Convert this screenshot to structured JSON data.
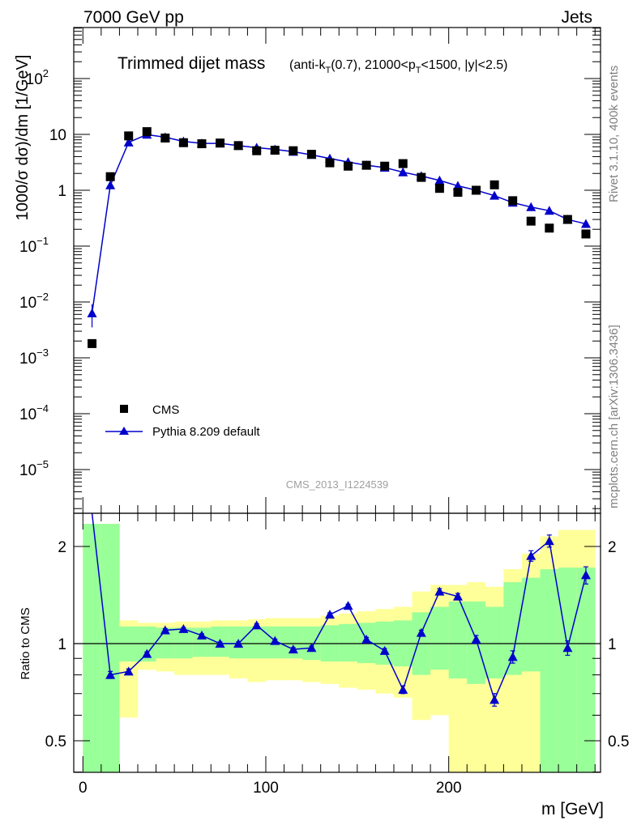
{
  "header": {
    "energy_label": "7000 GeV pp",
    "process_label": "Jets",
    "side_top": "Rivet 3.1.10,  400k events",
    "side_bottom": "mcplots.cern.ch [arXiv:1306.3436]",
    "analysis_id": "CMS_2013_I1224539"
  },
  "chart_data": [
    {
      "type": "scatter",
      "title": "Trimmed dijet mass",
      "subtitle": "(anti-k_T(0.7), 21000<p_T<1500, |y|<2.5)",
      "xlabel": "m [GeV]",
      "ylabel": "1000/σ dσ)/dm [1/GeV]",
      "yscale": "log",
      "xlim": [
        -5,
        283
      ],
      "ylim": [
        4e-06,
        1000
      ],
      "x_ticks": [
        0,
        100,
        200
      ],
      "y_ticks": [
        "10^-5",
        "10^-4",
        "10^-3",
        "10^-2",
        "10^-1",
        "1",
        "10",
        "10^2"
      ],
      "legend_position": "bottom-left",
      "series": [
        {
          "name": "CMS",
          "marker": "square",
          "color": "#000000",
          "x": [
            5,
            15,
            25,
            35,
            45,
            55,
            65,
            75,
            85,
            95,
            105,
            115,
            125,
            135,
            145,
            155,
            165,
            175,
            185,
            195,
            205,
            215,
            225,
            235,
            245,
            255,
            265,
            275
          ],
          "y": [
            0.0018,
            1.75,
            9.4,
            11.2,
            8.6,
            7.1,
            6.8,
            7.0,
            6.3,
            5.1,
            5.2,
            5.1,
            4.4,
            3.1,
            2.7,
            2.8,
            2.7,
            3.0,
            1.7,
            1.08,
            0.92,
            1.0,
            1.25,
            0.65,
            0.28,
            0.21,
            0.3,
            0.165
          ]
        },
        {
          "name": "Pythia 8.209 default",
          "marker": "triangle",
          "color": "#0000cc",
          "x": [
            5,
            15,
            25,
            35,
            45,
            55,
            65,
            75,
            85,
            95,
            105,
            115,
            125,
            135,
            145,
            155,
            165,
            175,
            185,
            195,
            205,
            215,
            225,
            235,
            245,
            255,
            265,
            275
          ],
          "y": [
            0.0063,
            1.23,
            7.2,
            9.9,
            8.9,
            7.5,
            6.9,
            6.9,
            6.3,
            5.8,
            5.4,
            4.9,
            4.3,
            3.7,
            3.2,
            2.8,
            2.55,
            2.1,
            1.8,
            1.5,
            1.2,
            1.0,
            0.8,
            0.6,
            0.5,
            0.43,
            0.3,
            0.25
          ],
          "yerr": [
            0.0028,
            0.05,
            0.1,
            0.1,
            0.1,
            0.1,
            0.1,
            0.1,
            0.1,
            0.1,
            0.1,
            0.1,
            0.08,
            0.06,
            0.05,
            0.05,
            0.04,
            0.03,
            0.03,
            0.03,
            0.02,
            0.02,
            0.02,
            0.015,
            0.012,
            0.012,
            0.01,
            0.01
          ]
        }
      ]
    },
    {
      "type": "line",
      "ylabel": "Ratio to CMS",
      "xlabel": "m [GeV]",
      "yscale": "log",
      "xlim": [
        -5,
        283
      ],
      "ylim": [
        0.4,
        2.35
      ],
      "y_ticks": [
        0.5,
        1,
        2
      ],
      "reference_line": 1,
      "bands": {
        "x_edges": [
          0,
          10,
          20,
          30,
          40,
          50,
          60,
          70,
          80,
          90,
          100,
          110,
          120,
          130,
          140,
          150,
          160,
          170,
          180,
          190,
          200,
          210,
          220,
          230,
          240,
          250,
          260,
          270,
          280
        ],
        "green_low": [
          0.35,
          0.35,
          0.88,
          0.88,
          0.9,
          0.9,
          0.91,
          0.91,
          0.9,
          0.9,
          0.9,
          0.9,
          0.89,
          0.88,
          0.88,
          0.87,
          0.86,
          0.85,
          0.8,
          0.83,
          0.78,
          0.75,
          0.78,
          0.8,
          0.82,
          0.35,
          0.35,
          0.35
        ],
        "green_high": [
          2.35,
          2.35,
          1.13,
          1.13,
          1.12,
          1.12,
          1.12,
          1.13,
          1.13,
          1.13,
          1.13,
          1.13,
          1.13,
          1.14,
          1.15,
          1.16,
          1.17,
          1.18,
          1.25,
          1.3,
          1.35,
          1.35,
          1.3,
          1.55,
          1.6,
          1.7,
          1.72,
          1.72
        ],
        "yellow_low": [
          0.35,
          0.35,
          0.59,
          0.83,
          0.82,
          0.8,
          0.8,
          0.8,
          0.78,
          0.76,
          0.77,
          0.77,
          0.76,
          0.75,
          0.73,
          0.72,
          0.7,
          0.68,
          0.58,
          0.6,
          0.38,
          0.38,
          0.35,
          0.35,
          0.35,
          0.35,
          0.35,
          0.35
        ],
        "yellow_high": [
          2.35,
          2.35,
          1.18,
          1.16,
          1.16,
          1.17,
          1.17,
          1.18,
          1.18,
          1.19,
          1.2,
          1.2,
          1.2,
          1.22,
          1.24,
          1.26,
          1.28,
          1.3,
          1.45,
          1.52,
          1.52,
          1.55,
          1.5,
          1.7,
          1.9,
          2.15,
          2.25,
          2.25
        ]
      },
      "series": [
        {
          "name": "Pythia 8.209 default",
          "color": "#0000cc",
          "x": [
            5,
            15,
            25,
            35,
            45,
            55,
            65,
            75,
            85,
            95,
            105,
            115,
            125,
            135,
            145,
            155,
            165,
            175,
            185,
            195,
            205,
            215,
            225,
            235,
            245,
            255,
            265,
            275
          ],
          "y": [
            3.5,
            0.8,
            0.82,
            0.93,
            1.1,
            1.11,
            1.06,
            1.0,
            1.0,
            1.14,
            1.02,
            0.96,
            0.97,
            1.23,
            1.31,
            1.03,
            0.95,
            0.72,
            1.08,
            1.45,
            1.4,
            1.03,
            0.67,
            0.91,
            1.87,
            2.08,
            0.97,
            1.63
          ],
          "yerr": [
            0,
            0.02,
            0.015,
            0.012,
            0.012,
            0.012,
            0.012,
            0.012,
            0.012,
            0.012,
            0.012,
            0.012,
            0.012,
            0.015,
            0.015,
            0.015,
            0.015,
            0.02,
            0.02,
            0.03,
            0.03,
            0.03,
            0.03,
            0.04,
            0.07,
            0.09,
            0.05,
            0.1
          ]
        }
      ]
    }
  ]
}
